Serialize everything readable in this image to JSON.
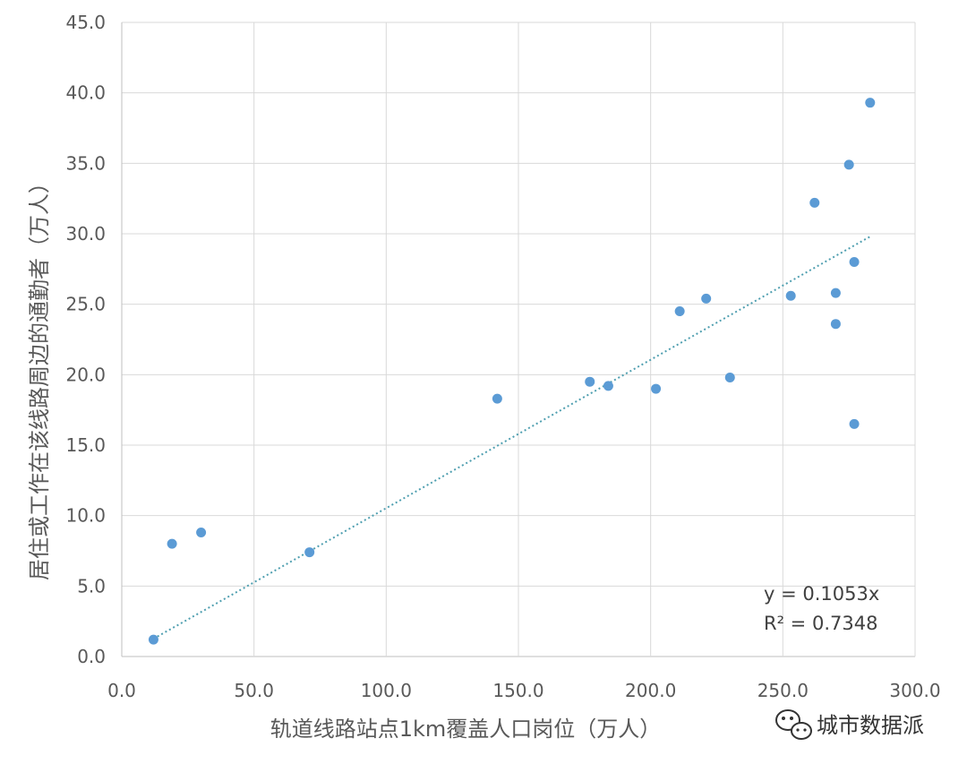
{
  "chart_data": {
    "type": "scatter",
    "xlabel": "轨道线路站点1km覆盖人口岗位（万人）",
    "ylabel": "居住或工作在该线路周边的通勤者（万人）",
    "xlim": [
      0,
      300
    ],
    "ylim": [
      0,
      45
    ],
    "x_ticks": [
      "0.0",
      "50.0",
      "100.0",
      "150.0",
      "200.0",
      "250.0",
      "300.0"
    ],
    "y_ticks": [
      "0.0",
      "5.0",
      "10.0",
      "15.0",
      "20.0",
      "25.0",
      "30.0",
      "35.0",
      "40.0",
      "45.0"
    ],
    "grid": true,
    "marker_color": "#5b9bd5",
    "trendline_color": "#4f9fb0",
    "points": [
      {
        "x": 12,
        "y": 1.2
      },
      {
        "x": 19,
        "y": 8.0
      },
      {
        "x": 30,
        "y": 8.8
      },
      {
        "x": 71,
        "y": 7.4
      },
      {
        "x": 142,
        "y": 18.3
      },
      {
        "x": 177,
        "y": 19.5
      },
      {
        "x": 184,
        "y": 19.2
      },
      {
        "x": 202,
        "y": 19.0
      },
      {
        "x": 211,
        "y": 24.5
      },
      {
        "x": 221,
        "y": 25.4
      },
      {
        "x": 230,
        "y": 19.8
      },
      {
        "x": 253,
        "y": 25.6
      },
      {
        "x": 262,
        "y": 32.2
      },
      {
        "x": 270,
        "y": 25.8
      },
      {
        "x": 270,
        "y": 23.6
      },
      {
        "x": 275,
        "y": 34.9
      },
      {
        "x": 277,
        "y": 28.0
      },
      {
        "x": 277,
        "y": 16.5
      },
      {
        "x": 283,
        "y": 39.3
      }
    ],
    "trendline": {
      "slope": 0.1053,
      "x_start": 12,
      "x_end": 283
    },
    "equation_text": "y = 0.1053x",
    "r2_text": "R² = 0.7348"
  },
  "watermark": {
    "text": "城市数据派",
    "icon": "wechat-icon"
  }
}
